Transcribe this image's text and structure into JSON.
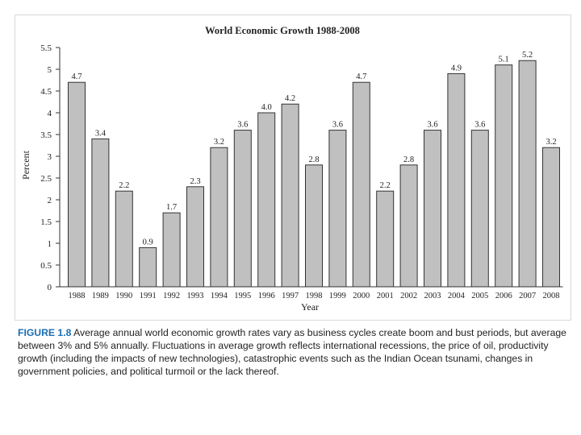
{
  "colors": {
    "bar_fill": "#c0c0c0",
    "bar_stroke": "#333333",
    "axis": "#333333",
    "caption_label": "#1a6db3"
  },
  "caption": {
    "label": "FIGURE 1.8",
    "text": "Average annual world economic growth rates vary as business cycles create boom and bust periods, but average between 3% and 5% annually. Fluctuations in average growth reflects international recessions, the price of oil, productivity growth (including the impacts of new technologies), catastrophic events such as the Indian Ocean tsunami, changes in government policies, and political turmoil or the lack thereof."
  },
  "chart_data": {
    "type": "bar",
    "title": "World Economic Growth 1988-2008",
    "xlabel": "Year",
    "ylabel": "Percent",
    "ylim": [
      0,
      5.5
    ],
    "yticks": [
      "0",
      "0.5",
      "1",
      "1.5",
      "2",
      "2.5",
      "3",
      "3.5",
      "4",
      "4.5",
      "5",
      "5.5"
    ],
    "categories": [
      "1988",
      "1989",
      "1990",
      "1991",
      "1992",
      "1993",
      "1994",
      "1995",
      "1996",
      "1997",
      "1998",
      "1999",
      "2000",
      "2001",
      "2002",
      "2003",
      "2004",
      "2005",
      "2006",
      "2007",
      "2008"
    ],
    "values": [
      4.7,
      3.4,
      2.2,
      0.9,
      1.7,
      2.3,
      3.2,
      3.6,
      4.0,
      4.2,
      2.8,
      3.6,
      4.7,
      2.2,
      2.8,
      3.6,
      4.9,
      3.6,
      5.1,
      5.2,
      3.2
    ],
    "value_labels": [
      "4.7",
      "3.4",
      "2.2",
      "0.9",
      "1.7",
      "2.3",
      "3.2",
      "3.6",
      "4.0",
      "4.2",
      "2.8",
      "3.6",
      "4.7",
      "2.2",
      "2.8",
      "3.6",
      "4.9",
      "3.6",
      "5.1",
      "5.2",
      "3.2"
    ]
  }
}
